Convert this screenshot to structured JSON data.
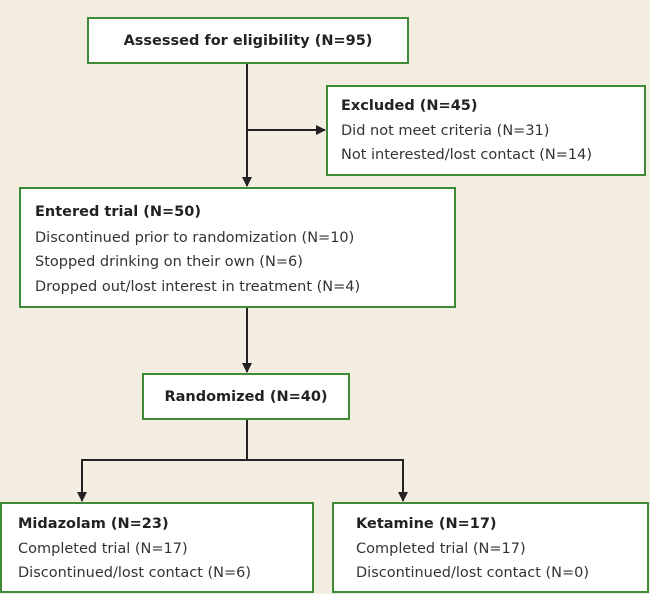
{
  "nodes": [
    {
      "title": "Assessed for eligibility (N=95)",
      "lines": []
    },
    {
      "title": "Excluded (N=45)",
      "lines": [
        "Did not meet criteria (N=31)",
        "Not interested/lost contact (N=14)"
      ]
    },
    {
      "title": "Entered trial (N=50)",
      "lines": [
        "Discontinued prior to randomization (N=10)",
        "Stopped drinking on their own (N=6)",
        "Dropped out/lost interest in treatment (N=4)"
      ]
    },
    {
      "title": "Randomized (N=40)",
      "lines": []
    },
    {
      "title": "Midazolam (N=23)",
      "lines": [
        "Completed trial (N=17)",
        "Discontinued/lost contact (N=6)"
      ]
    },
    {
      "title": "Ketamine (N=17)",
      "lines": [
        "Completed trial (N=17)",
        "Discontinued/lost contact (N=0)"
      ]
    }
  ]
}
